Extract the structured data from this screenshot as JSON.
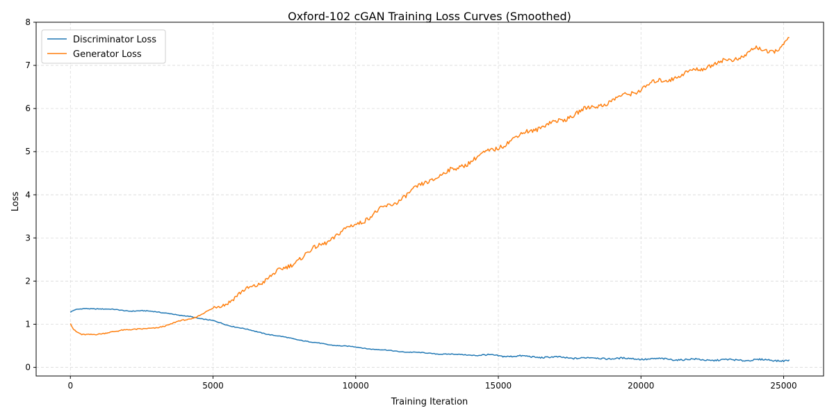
{
  "chart_data": {
    "type": "line",
    "title": "Oxford-102 cGAN Training Loss Curves (Smoothed)",
    "xlabel": "Training Iteration",
    "ylabel": "Loss",
    "xlim": [
      -1200,
      26400
    ],
    "ylim": [
      -0.2,
      8.0
    ],
    "xticks": [
      0,
      5000,
      10000,
      15000,
      20000,
      25000
    ],
    "yticks": [
      0,
      1,
      2,
      3,
      4,
      5,
      6,
      7,
      8
    ],
    "grid": true,
    "legend_position": "top-left",
    "series": [
      {
        "name": "Discriminator Loss",
        "color": "#1f77b4",
        "x": [
          0,
          150,
          500,
          1000,
          1500,
          2000,
          2500,
          3000,
          3500,
          3800,
          4000,
          4200,
          4500,
          5000,
          5500,
          6000,
          6500,
          7000,
          7500,
          8000,
          8500,
          9000,
          9500,
          10000,
          10500,
          11000,
          11500,
          12000,
          12500,
          13000,
          13500,
          14000,
          14500,
          15000,
          15500,
          16000,
          16500,
          17000,
          17500,
          18000,
          18500,
          19000,
          19500,
          20000,
          20500,
          21000,
          21500,
          22000,
          22500,
          23000,
          23500,
          24000,
          24500,
          25000,
          25200
        ],
        "y": [
          1.28,
          1.33,
          1.36,
          1.36,
          1.34,
          1.31,
          1.31,
          1.29,
          1.25,
          1.2,
          1.19,
          1.18,
          1.14,
          1.08,
          0.98,
          0.91,
          0.83,
          0.76,
          0.7,
          0.64,
          0.58,
          0.53,
          0.5,
          0.47,
          0.43,
          0.4,
          0.37,
          0.35,
          0.33,
          0.31,
          0.3,
          0.29,
          0.28,
          0.27,
          0.26,
          0.25,
          0.24,
          0.23,
          0.22,
          0.22,
          0.21,
          0.21,
          0.2,
          0.2,
          0.19,
          0.19,
          0.18,
          0.18,
          0.17,
          0.17,
          0.17,
          0.17,
          0.17,
          0.16,
          0.16
        ]
      },
      {
        "name": "Generator Loss",
        "color": "#ff7f0e",
        "x": [
          0,
          100,
          200,
          400,
          600,
          800,
          1000,
          1200,
          1500,
          1800,
          2000,
          2500,
          3000,
          3500,
          3800,
          4000,
          4200,
          4500,
          5000,
          5500,
          6000,
          6500,
          7000,
          7500,
          8000,
          8500,
          9000,
          9500,
          10000,
          10500,
          11000,
          11500,
          12000,
          12500,
          13000,
          13500,
          14000,
          14500,
          15000,
          15500,
          16000,
          16500,
          17000,
          17500,
          18000,
          18500,
          19000,
          19500,
          20000,
          20500,
          21000,
          21500,
          22000,
          22500,
          23000,
          23500,
          24000,
          24500,
          25000,
          25200
        ],
        "y": [
          1.02,
          0.88,
          0.82,
          0.76,
          0.77,
          0.77,
          0.77,
          0.78,
          0.82,
          0.87,
          0.88,
          0.88,
          0.92,
          0.99,
          1.07,
          1.1,
          1.12,
          1.2,
          1.36,
          1.52,
          1.72,
          1.91,
          2.1,
          2.29,
          2.51,
          2.72,
          2.93,
          3.13,
          3.32,
          3.5,
          3.69,
          3.88,
          4.08,
          4.32,
          4.46,
          4.6,
          4.78,
          4.94,
          5.12,
          5.26,
          5.48,
          5.57,
          5.68,
          5.82,
          5.96,
          6.08,
          6.18,
          6.32,
          6.46,
          6.6,
          6.7,
          6.78,
          6.92,
          7.02,
          7.1,
          7.2,
          7.38,
          7.32,
          7.45,
          7.65
        ]
      }
    ]
  }
}
